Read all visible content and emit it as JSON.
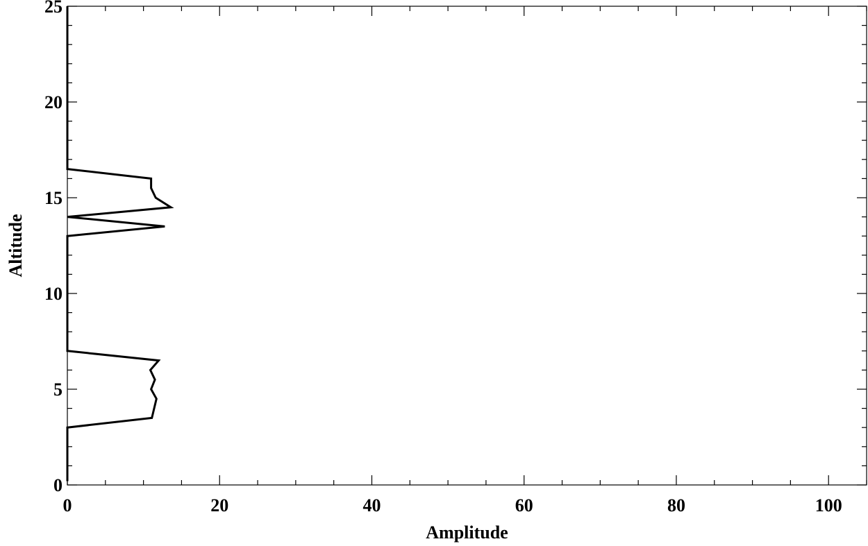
{
  "chart_data": {
    "type": "line",
    "title": "",
    "xlabel": "Amplitude",
    "ylabel": "Altitude",
    "xlim": [
      0,
      105
    ],
    "ylim": [
      0,
      25
    ],
    "x_ticks": [
      0,
      20,
      40,
      60,
      80,
      100
    ],
    "y_ticks": [
      0,
      5,
      10,
      15,
      20,
      25
    ],
    "x_minor_step": 5,
    "y_minor_step": 1,
    "grid": false,
    "line_color": "#000000",
    "series": [
      {
        "points": [
          {
            "x": 0,
            "y": 0.2
          },
          {
            "x": 0,
            "y": 3.0
          },
          {
            "x": 11.1,
            "y": 3.5
          },
          {
            "x": 11.7,
            "y": 4.5
          },
          {
            "x": 11.0,
            "y": 5.0
          },
          {
            "x": 11.5,
            "y": 5.5
          },
          {
            "x": 10.9,
            "y": 6.0
          },
          {
            "x": 12.0,
            "y": 6.5
          },
          {
            "x": 0,
            "y": 7.0
          },
          {
            "x": 0,
            "y": 13.0
          },
          {
            "x": 12.8,
            "y": 13.5
          },
          {
            "x": 0,
            "y": 14.0
          },
          {
            "x": 13.6,
            "y": 14.5
          },
          {
            "x": 11.6,
            "y": 15.0
          },
          {
            "x": 11.0,
            "y": 15.5
          },
          {
            "x": 11.0,
            "y": 16.0
          },
          {
            "x": 0,
            "y": 16.5
          },
          {
            "x": 0,
            "y": 25.0
          }
        ]
      }
    ]
  }
}
